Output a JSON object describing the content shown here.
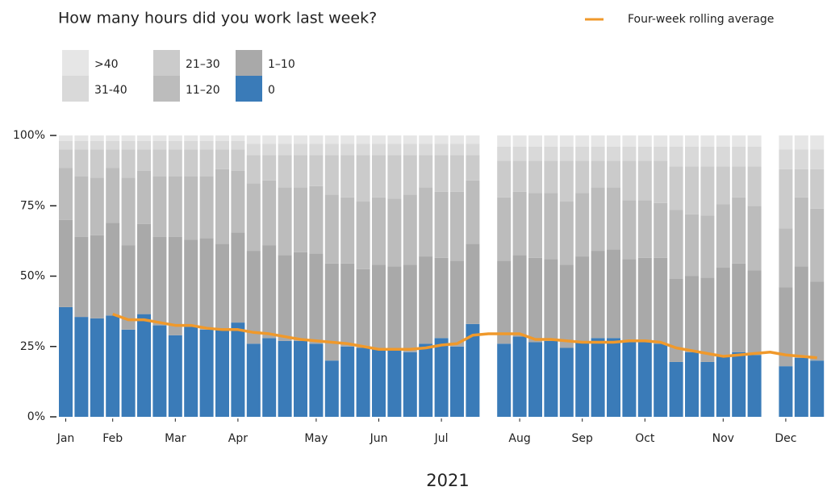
{
  "chart_data": {
    "type": "stacked_bar",
    "title": "How many hours did you work last week?",
    "xlabel": "2021",
    "categories": [
      "Jan",
      null,
      null,
      "Feb",
      null,
      null,
      null,
      "Mar",
      null,
      null,
      null,
      "Apr",
      null,
      null,
      null,
      null,
      "May",
      null,
      null,
      null,
      "Jun",
      null,
      null,
      null,
      "Jul",
      null,
      null,
      null,
      null,
      "Aug",
      null,
      null,
      null,
      "Sep",
      null,
      null,
      null,
      "Oct",
      null,
      null,
      null,
      null,
      "Nov",
      null,
      null,
      null,
      "Dec",
      null,
      null
    ],
    "series": [
      {
        "name": "0",
        "color": "#3a7bb8",
        "values": [
          39,
          35.5,
          35,
          36,
          31,
          36.5,
          32.5,
          29,
          32,
          31,
          31,
          33.5,
          26,
          28,
          27,
          27,
          26,
          20,
          25,
          24.5,
          24,
          24,
          23,
          26,
          28,
          25,
          33,
          null,
          26,
          28.5,
          26.5,
          27,
          24.5,
          26.5,
          28,
          28,
          26.5,
          26.5,
          26,
          19.5,
          23,
          19.5,
          22,
          23,
          22,
          null,
          18,
          21,
          20
        ]
      },
      {
        "name": "1–10",
        "color": "#a9a9a9",
        "values": [
          31,
          28.5,
          29.5,
          33,
          30,
          32,
          31.5,
          35,
          31,
          32.5,
          30.5,
          32,
          33,
          33,
          30.5,
          31.5,
          32,
          34.5,
          29.5,
          28,
          30,
          29.5,
          31,
          31,
          28.5,
          30.5,
          28.5,
          null,
          29.5,
          29,
          30,
          29,
          29.5,
          30.5,
          31,
          31.5,
          29.5,
          30,
          30.5,
          29.5,
          27,
          30,
          31,
          31.5,
          30,
          null,
          28,
          32.5,
          28
        ]
      },
      {
        "name": "11–20",
        "color": "#bcbcbc",
        "values": [
          18.5,
          21.5,
          20.5,
          19.5,
          24,
          19,
          21.5,
          21.5,
          22.5,
          22,
          26.5,
          22,
          24,
          23,
          24,
          23,
          24,
          24.5,
          23.5,
          24,
          24,
          24,
          25,
          24.5,
          23.5,
          24.5,
          22.5,
          null,
          22.5,
          22.5,
          23,
          23.5,
          22.5,
          22.5,
          22.5,
          22,
          21,
          20.5,
          19.5,
          24.5,
          22,
          22,
          22.5,
          23.5,
          23,
          null,
          21,
          24.5,
          26
        ]
      },
      {
        "name": "21–30",
        "color": "#cbcbcb",
        "values": [
          6.5,
          9.5,
          10,
          6.5,
          10,
          7.5,
          9.5,
          9.5,
          9.5,
          9.5,
          7,
          7.5,
          10,
          9,
          11.5,
          11.5,
          11,
          14,
          15,
          16.5,
          15,
          15.5,
          14,
          11.5,
          13,
          13,
          9,
          null,
          13,
          11,
          11.5,
          11.5,
          14.5,
          11.5,
          9.5,
          9.5,
          14,
          14,
          15,
          15.5,
          17,
          17.5,
          13.5,
          11,
          14,
          null,
          21,
          10,
          14
        ]
      },
      {
        "name": "31-40",
        "color": "#d9d9d9",
        "values": [
          3,
          3,
          3,
          3,
          3,
          3,
          3,
          3,
          3,
          3,
          3,
          3,
          4,
          4,
          4,
          4,
          4,
          4,
          4,
          4,
          4,
          4,
          4,
          4,
          4,
          4,
          4,
          null,
          5,
          5,
          5,
          5,
          5,
          5,
          5,
          5,
          5,
          5,
          5,
          7,
          7,
          7,
          7,
          7,
          7,
          null,
          7,
          7,
          7
        ]
      },
      {
        "name": ">40",
        "color": "#e6e6e6",
        "values": [
          2,
          2,
          2,
          2,
          2,
          2,
          2,
          2,
          2,
          2,
          2,
          2,
          3,
          3,
          3,
          3,
          3,
          3,
          3,
          3,
          3,
          3,
          3,
          3,
          3,
          3,
          3,
          null,
          4,
          4,
          4,
          4,
          4,
          4,
          4,
          4,
          4,
          4,
          4,
          4,
          4,
          4,
          4,
          4,
          4,
          null,
          5,
          5,
          5
        ]
      }
    ],
    "line": {
      "name": "Four-week rolling average",
      "color": "#f0992b",
      "values": [
        null,
        null,
        null,
        36.5,
        34.5,
        34.5,
        33.5,
        32.5,
        32.5,
        31.5,
        31,
        31,
        30,
        29.5,
        28.5,
        27.5,
        27,
        26.5,
        26,
        25,
        24,
        24,
        24,
        24.5,
        25.5,
        26,
        29,
        29.5,
        29.5,
        29.5,
        27.5,
        27.5,
        27,
        26.5,
        26.5,
        26.5,
        27,
        27,
        26.5,
        24.5,
        23.5,
        22.5,
        21.5,
        22,
        22.5,
        23,
        22,
        21.5,
        21
      ]
    },
    "ylim": [
      0,
      100
    ],
    "yticks": [
      {
        "value": 0,
        "label": "0%"
      },
      {
        "value": 25,
        "label": "25%"
      },
      {
        "value": 50,
        "label": "50%"
      },
      {
        "value": 75,
        "label": "75%"
      },
      {
        "value": 100,
        "label": "100%"
      }
    ]
  }
}
